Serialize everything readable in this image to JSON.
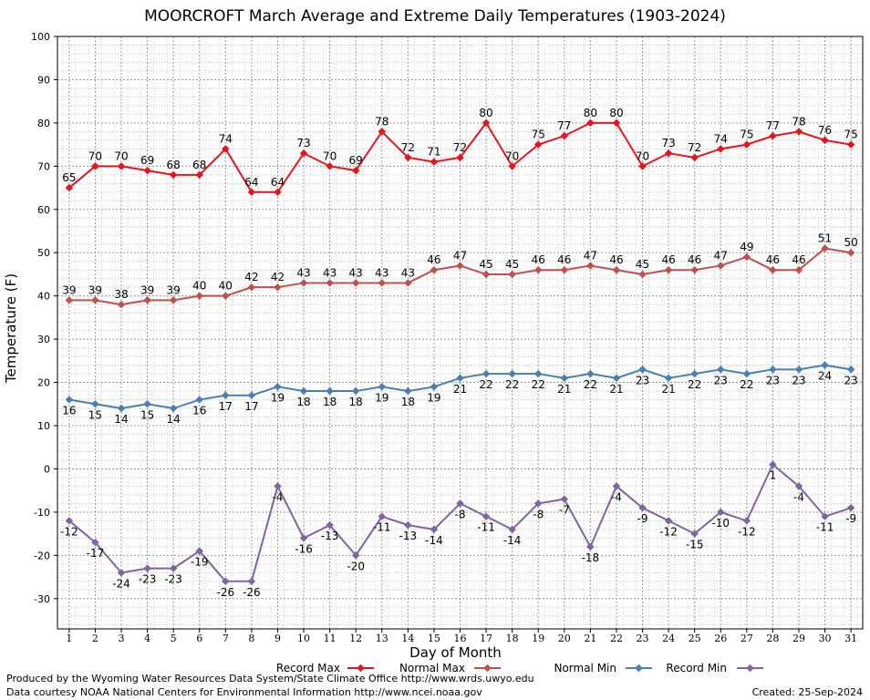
{
  "footer": {
    "produced_by": "Produced by the Wyoming Water Resources Data System/State Climate Office http://www.wrds.uwyo.edu",
    "courtesy": "Data courtesy NOAA National Centers for Environmental Information http://www.ncei.noaa.gov",
    "created": "Created: 25-Sep-2024"
  },
  "chart_data": {
    "type": "line",
    "title": "MOORCROFT March Average and Extreme Daily Temperatures (1903-2024)",
    "xlabel": "Day of Month",
    "ylabel": "Temperature (F)",
    "ylim": [
      -37,
      100
    ],
    "xlim": [
      0.55,
      31.45
    ],
    "yticks": [
      -30,
      -20,
      -10,
      0,
      10,
      20,
      30,
      40,
      50,
      60,
      70,
      80,
      90,
      100
    ],
    "x": [
      1,
      2,
      3,
      4,
      5,
      6,
      7,
      8,
      9,
      10,
      11,
      12,
      13,
      14,
      15,
      16,
      17,
      18,
      19,
      20,
      21,
      22,
      23,
      24,
      25,
      26,
      27,
      28,
      29,
      30,
      31
    ],
    "grid": true,
    "legend_position": "bottom",
    "series": [
      {
        "name": "Record Max",
        "color": "#e8141c",
        "label_position": "above",
        "values": [
          65,
          70,
          70,
          69,
          68,
          68,
          74,
          64,
          64,
          73,
          70,
          69,
          78,
          72,
          71,
          72,
          80,
          70,
          75,
          77,
          80,
          80,
          70,
          73,
          72,
          74,
          75,
          77,
          78,
          76,
          75
        ]
      },
      {
        "name": "Normal Max",
        "color": "#c0504d",
        "label_position": "above",
        "values": [
          39,
          39,
          38,
          39,
          39,
          40,
          40,
          42,
          42,
          43,
          43,
          43,
          43,
          43,
          46,
          47,
          45,
          45,
          46,
          46,
          47,
          46,
          45,
          46,
          46,
          47,
          49,
          46,
          46,
          51,
          50
        ]
      },
      {
        "name": "Normal Min",
        "color": "#4a7fb5",
        "label_position": "below",
        "values": [
          16,
          15,
          14,
          15,
          14,
          16,
          17,
          17,
          19,
          18,
          18,
          18,
          19,
          18,
          19,
          21,
          22,
          22,
          22,
          21,
          22,
          21,
          23,
          21,
          22,
          23,
          22,
          23,
          23,
          24,
          23
        ]
      },
      {
        "name": "Record Min",
        "color": "#8064a2",
        "label_position": "below",
        "values": [
          -12,
          -17,
          -24,
          -23,
          -23,
          -19,
          -26,
          -26,
          -4,
          -16,
          -13,
          -20,
          -11,
          -13,
          -14,
          -8,
          -11,
          -14,
          -8,
          -7,
          -18,
          -4,
          -9,
          -12,
          -15,
          -10,
          -12,
          1,
          -4,
          -11,
          -9
        ]
      }
    ]
  }
}
